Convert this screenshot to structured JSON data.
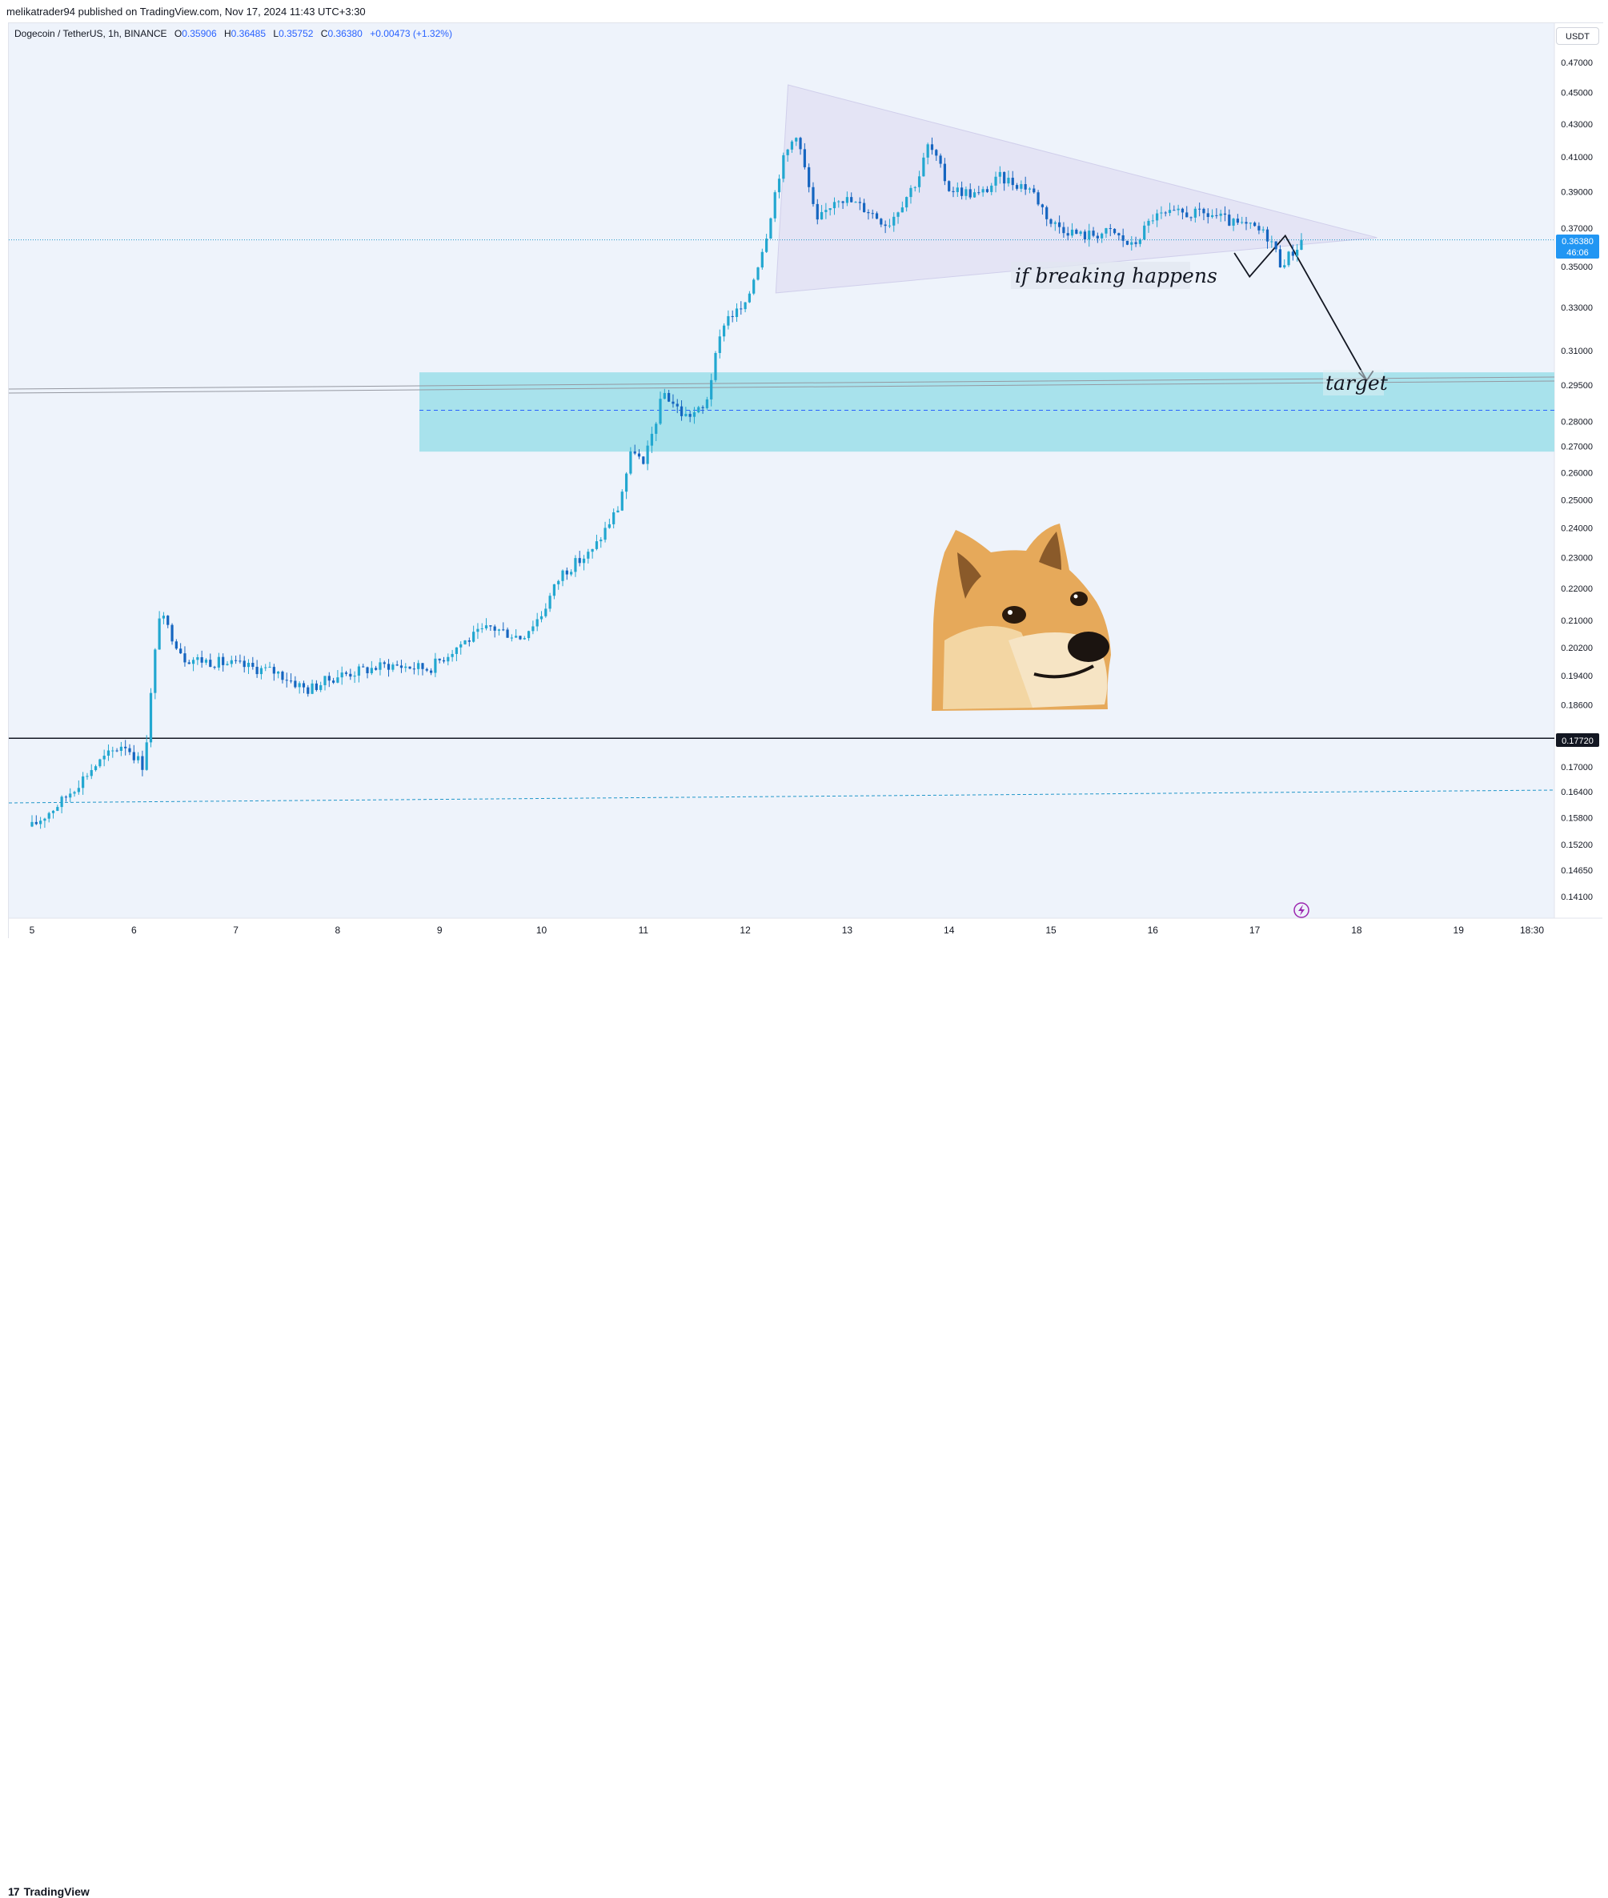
{
  "header": {
    "published": "melikatrader94 published on TradingView.com, Nov 17, 2024 11:43 UTC+3:30"
  },
  "legend": {
    "symbol": "Dogecoin / TetherUS, 1h, BINANCE",
    "o_label": "O",
    "o_value": "0.35906",
    "h_label": "H",
    "h_value": "0.36485",
    "l_label": "L",
    "l_value": "0.35752",
    "c_label": "C",
    "c_value": "0.36380",
    "change": "+0.00473 (+1.32%)"
  },
  "currency": "USDT",
  "price_badge": {
    "price": "0.36380",
    "countdown": "46:06"
  },
  "level_badge": {
    "price": "0.17720"
  },
  "annotations": {
    "breakout_label": "if breaking happens",
    "target_label": "target"
  },
  "footer": {
    "brand": "TradingView",
    "brand_mark": "17"
  },
  "colors": {
    "up": "#089981",
    "down": "#2962ff",
    "candle_main": "#2196c9",
    "zone": "#a8e2ec",
    "triangle": "#e1dff3",
    "line": "#131722"
  },
  "chart_data": {
    "type": "candlestick",
    "symbol": "Dogecoin / TetherUS",
    "interval": "1h",
    "exchange": "BINANCE",
    "ylim": [
      0.135,
      0.48
    ],
    "y_ticks": [
      "0.47000",
      "0.45000",
      "0.43000",
      "0.41000",
      "0.39000",
      "0.37000",
      "0.35000",
      "0.33000",
      "0.31000",
      "0.29500",
      "0.28000",
      "0.27000",
      "0.26000",
      "0.25000",
      "0.24000",
      "0.23000",
      "0.22000",
      "0.21000",
      "0.20200",
      "0.19400",
      "0.18600",
      "0.17000",
      "0.16400",
      "0.15800",
      "0.15200",
      "0.14650",
      "0.14100"
    ],
    "x_ticks": [
      "5",
      "6",
      "7",
      "8",
      "9",
      "10",
      "11",
      "12",
      "13",
      "14",
      "15",
      "16",
      "17",
      "18",
      "19",
      "18:30"
    ],
    "current_price": 0.3638,
    "support_level": 0.1772,
    "demand_zone": {
      "top": 0.3005,
      "bottom": 0.268,
      "mid": 0.2845
    },
    "triangle": {
      "apex_top": 0.455,
      "apex_bottom": 0.337,
      "apex_right": 0.365
    },
    "trend_path": [
      {
        "day": 16.8,
        "price": 0.357
      },
      {
        "day": 16.95,
        "price": 0.345
      },
      {
        "day": 17.3,
        "price": 0.366
      },
      {
        "day": 18.1,
        "price": 0.297
      }
    ],
    "price_path": [
      {
        "day": 5.0,
        "price": 0.156
      },
      {
        "day": 5.3,
        "price": 0.162
      },
      {
        "day": 5.6,
        "price": 0.17
      },
      {
        "day": 5.9,
        "price": 0.176
      },
      {
        "day": 6.1,
        "price": 0.17
      },
      {
        "day": 6.25,
        "price": 0.212
      },
      {
        "day": 6.5,
        "price": 0.199
      },
      {
        "day": 7.0,
        "price": 0.197
      },
      {
        "day": 7.4,
        "price": 0.195
      },
      {
        "day": 7.7,
        "price": 0.19
      },
      {
        "day": 8.0,
        "price": 0.194
      },
      {
        "day": 8.5,
        "price": 0.197
      },
      {
        "day": 8.9,
        "price": 0.196
      },
      {
        "day": 9.2,
        "price": 0.203
      },
      {
        "day": 9.5,
        "price": 0.208
      },
      {
        "day": 9.8,
        "price": 0.205
      },
      {
        "day": 10.0,
        "price": 0.212
      },
      {
        "day": 10.2,
        "price": 0.225
      },
      {
        "day": 10.5,
        "price": 0.232
      },
      {
        "day": 10.75,
        "price": 0.247
      },
      {
        "day": 10.9,
        "price": 0.27
      },
      {
        "day": 11.0,
        "price": 0.262
      },
      {
        "day": 11.2,
        "price": 0.292
      },
      {
        "day": 11.4,
        "price": 0.282
      },
      {
        "day": 11.6,
        "price": 0.285
      },
      {
        "day": 11.8,
        "price": 0.325
      },
      {
        "day": 12.0,
        "price": 0.33
      },
      {
        "day": 12.2,
        "price": 0.365
      },
      {
        "day": 12.35,
        "price": 0.405
      },
      {
        "day": 12.5,
        "price": 0.425
      },
      {
        "day": 12.7,
        "price": 0.372
      },
      {
        "day": 12.9,
        "price": 0.388
      },
      {
        "day": 13.2,
        "price": 0.38
      },
      {
        "day": 13.4,
        "price": 0.372
      },
      {
        "day": 13.7,
        "price": 0.398
      },
      {
        "day": 13.8,
        "price": 0.418
      },
      {
        "day": 14.0,
        "price": 0.392
      },
      {
        "day": 14.3,
        "price": 0.388
      },
      {
        "day": 14.5,
        "price": 0.398
      },
      {
        "day": 14.8,
        "price": 0.392
      },
      {
        "day": 15.0,
        "price": 0.373
      },
      {
        "day": 15.3,
        "price": 0.366
      },
      {
        "day": 15.6,
        "price": 0.368
      },
      {
        "day": 15.8,
        "price": 0.36
      },
      {
        "day": 16.0,
        "price": 0.376
      },
      {
        "day": 16.3,
        "price": 0.378
      },
      {
        "day": 16.6,
        "price": 0.377
      },
      {
        "day": 16.8,
        "price": 0.372
      },
      {
        "day": 17.0,
        "price": 0.37
      },
      {
        "day": 17.15,
        "price": 0.365
      },
      {
        "day": 17.25,
        "price": 0.352
      },
      {
        "day": 17.35,
        "price": 0.356
      },
      {
        "day": 17.47,
        "price": 0.3638
      }
    ]
  }
}
